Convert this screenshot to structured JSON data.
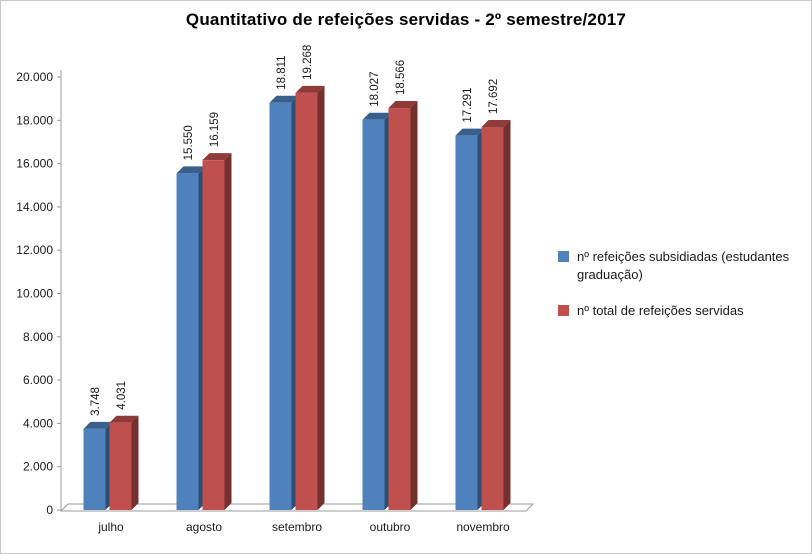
{
  "chart_data": {
    "type": "bar",
    "style": "3d-clustered",
    "title": "Quantitativo de refeições servidas - 2º semestre/2017",
    "categories": [
      "julho",
      "agosto",
      "setembro",
      "outubro",
      "novembro"
    ],
    "series": [
      {
        "name": "nº refeições subsidiadas (estudantes graduação)",
        "color": "#4f81bd",
        "values": [
          3748,
          15550,
          18811,
          18027,
          17291
        ],
        "labels": [
          "3.748",
          "15.550",
          "18.811",
          "18.027",
          "17.291"
        ]
      },
      {
        "name": "nº total de refeições servidas",
        "color": "#c0504d",
        "values": [
          4031,
          16159,
          19268,
          18566,
          17692
        ],
        "labels": [
          "4.031",
          "16.159",
          "19.268",
          "18.566",
          "17.692"
        ]
      }
    ],
    "ylim": [
      0,
      20000
    ],
    "y_ticks": [
      "0",
      "2.000",
      "4.000",
      "6.000",
      "8.000",
      "10.000",
      "12.000",
      "14.000",
      "16.000",
      "18.000",
      "20.000"
    ],
    "grid": false,
    "legend_position": "right",
    "axis_color": "#9b9b9b",
    "label_color": "#1a1a1a"
  }
}
